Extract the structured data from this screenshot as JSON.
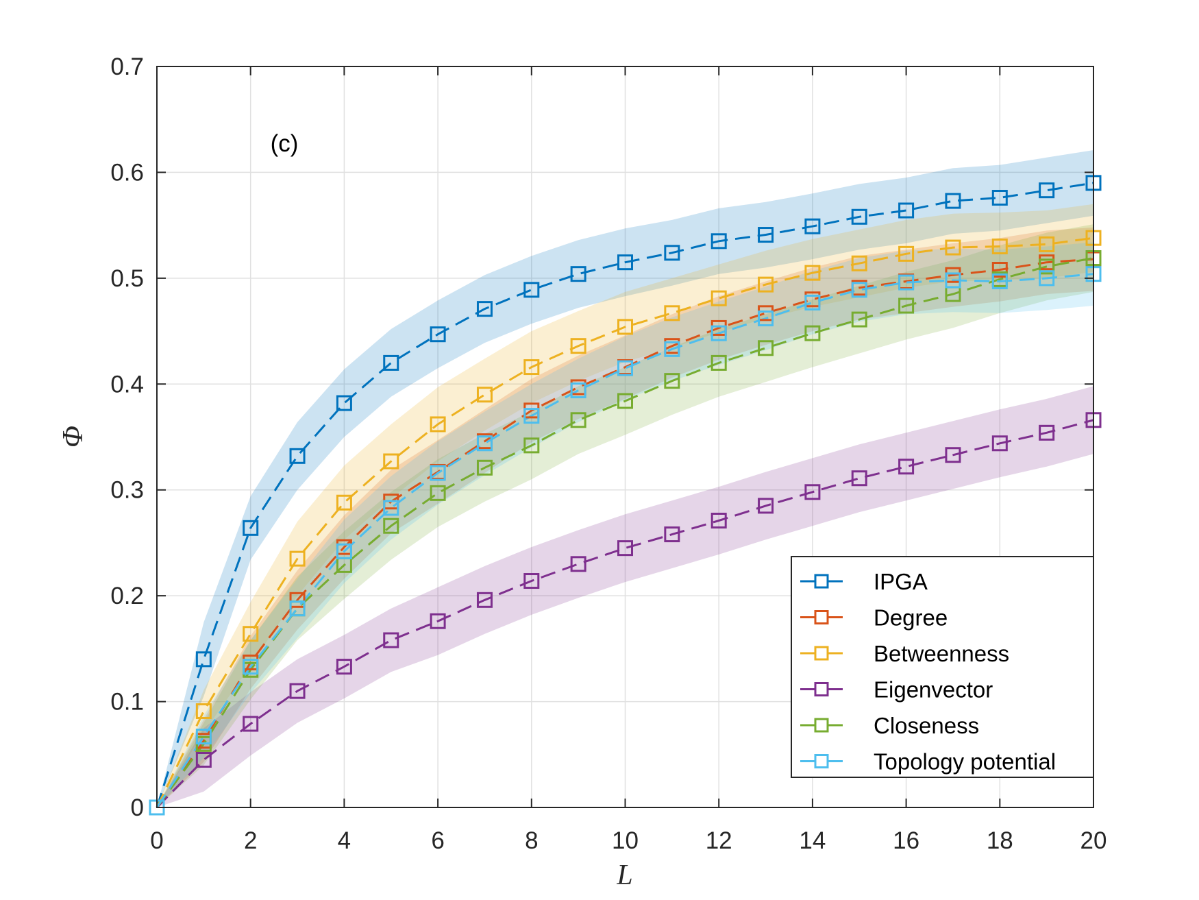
{
  "chart_data": {
    "type": "line",
    "panel_label": "(c)",
    "xlabel": "L",
    "ylabel": "Φ",
    "xlim": [
      0,
      20
    ],
    "ylim": [
      0,
      0.7
    ],
    "xticks": [
      "0",
      "2",
      "4",
      "6",
      "8",
      "10",
      "12",
      "14",
      "16",
      "18",
      "20"
    ],
    "yticks": [
      "0",
      "0.1",
      "0.2",
      "0.3",
      "0.4",
      "0.5",
      "0.6",
      "0.7"
    ],
    "grid": true,
    "legend_position": "bottom-right",
    "x": [
      0,
      1,
      2,
      3,
      4,
      5,
      6,
      7,
      8,
      9,
      10,
      11,
      12,
      13,
      14,
      15,
      16,
      17,
      18,
      19,
      20
    ],
    "series": [
      {
        "name": "IPGA",
        "color": "#0072BD",
        "values": [
          0,
          0.14,
          0.264,
          0.332,
          0.382,
          0.42,
          0.447,
          0.471,
          0.489,
          0.504,
          0.515,
          0.524,
          0.535,
          0.541,
          0.549,
          0.558,
          0.564,
          0.573,
          0.576,
          0.583,
          0.59
        ],
        "band": [
          0,
          0.035,
          0.03,
          0.032,
          0.032,
          0.032,
          0.032,
          0.032,
          0.032,
          0.032,
          0.032,
          0.031,
          0.031,
          0.031,
          0.031,
          0.031,
          0.031,
          0.031,
          0.031,
          0.031,
          0.031
        ]
      },
      {
        "name": "Degree",
        "color": "#D95319",
        "values": [
          0,
          0.063,
          0.137,
          0.196,
          0.246,
          0.289,
          0.317,
          0.346,
          0.375,
          0.397,
          0.416,
          0.436,
          0.453,
          0.467,
          0.48,
          0.491,
          0.497,
          0.503,
          0.508,
          0.515,
          0.518
        ],
        "band": [
          0,
          0.02,
          0.025,
          0.028,
          0.03,
          0.03,
          0.03,
          0.03,
          0.03,
          0.03,
          0.03,
          0.03,
          0.03,
          0.03,
          0.03,
          0.03,
          0.03,
          0.03,
          0.03,
          0.03,
          0.03
        ]
      },
      {
        "name": "Betweenness",
        "color": "#EDB120",
        "values": [
          0,
          0.091,
          0.164,
          0.235,
          0.288,
          0.327,
          0.362,
          0.39,
          0.416,
          0.436,
          0.454,
          0.467,
          0.481,
          0.494,
          0.505,
          0.514,
          0.523,
          0.529,
          0.53,
          0.532,
          0.538
        ],
        "band": [
          0,
          0.02,
          0.03,
          0.035,
          0.035,
          0.035,
          0.035,
          0.034,
          0.034,
          0.033,
          0.033,
          0.033,
          0.032,
          0.032,
          0.032,
          0.032,
          0.032,
          0.032,
          0.032,
          0.032,
          0.032
        ]
      },
      {
        "name": "Eigenvector",
        "color": "#7E2F8E",
        "values": [
          0,
          0.045,
          0.079,
          0.11,
          0.133,
          0.158,
          0.176,
          0.196,
          0.214,
          0.23,
          0.245,
          0.258,
          0.271,
          0.285,
          0.298,
          0.311,
          0.322,
          0.333,
          0.344,
          0.354,
          0.366
        ],
        "band": [
          0,
          0.03,
          0.03,
          0.03,
          0.03,
          0.03,
          0.032,
          0.032,
          0.032,
          0.032,
          0.032,
          0.032,
          0.032,
          0.032,
          0.032,
          0.032,
          0.032,
          0.032,
          0.032,
          0.032,
          0.032
        ]
      },
      {
        "name": "Closeness",
        "color": "#77AC30",
        "values": [
          0,
          0.06,
          0.13,
          0.188,
          0.229,
          0.266,
          0.297,
          0.321,
          0.342,
          0.366,
          0.384,
          0.403,
          0.42,
          0.434,
          0.448,
          0.461,
          0.474,
          0.485,
          0.499,
          0.511,
          0.519
        ],
        "band": [
          0,
          0.02,
          0.028,
          0.03,
          0.032,
          0.032,
          0.032,
          0.032,
          0.032,
          0.032,
          0.032,
          0.032,
          0.032,
          0.032,
          0.032,
          0.032,
          0.032,
          0.032,
          0.032,
          0.032,
          0.032
        ]
      },
      {
        "name": "Topology potential",
        "color": "#4DBEEE",
        "values": [
          0,
          0.067,
          0.133,
          0.188,
          0.242,
          0.283,
          0.316,
          0.344,
          0.37,
          0.394,
          0.415,
          0.433,
          0.448,
          0.462,
          0.477,
          0.489,
          0.496,
          0.498,
          0.497,
          0.5,
          0.504
        ],
        "band": [
          0,
          0.02,
          0.025,
          0.028,
          0.03,
          0.03,
          0.03,
          0.03,
          0.03,
          0.03,
          0.03,
          0.03,
          0.03,
          0.03,
          0.03,
          0.03,
          0.03,
          0.03,
          0.03,
          0.03,
          0.03
        ]
      }
    ]
  }
}
